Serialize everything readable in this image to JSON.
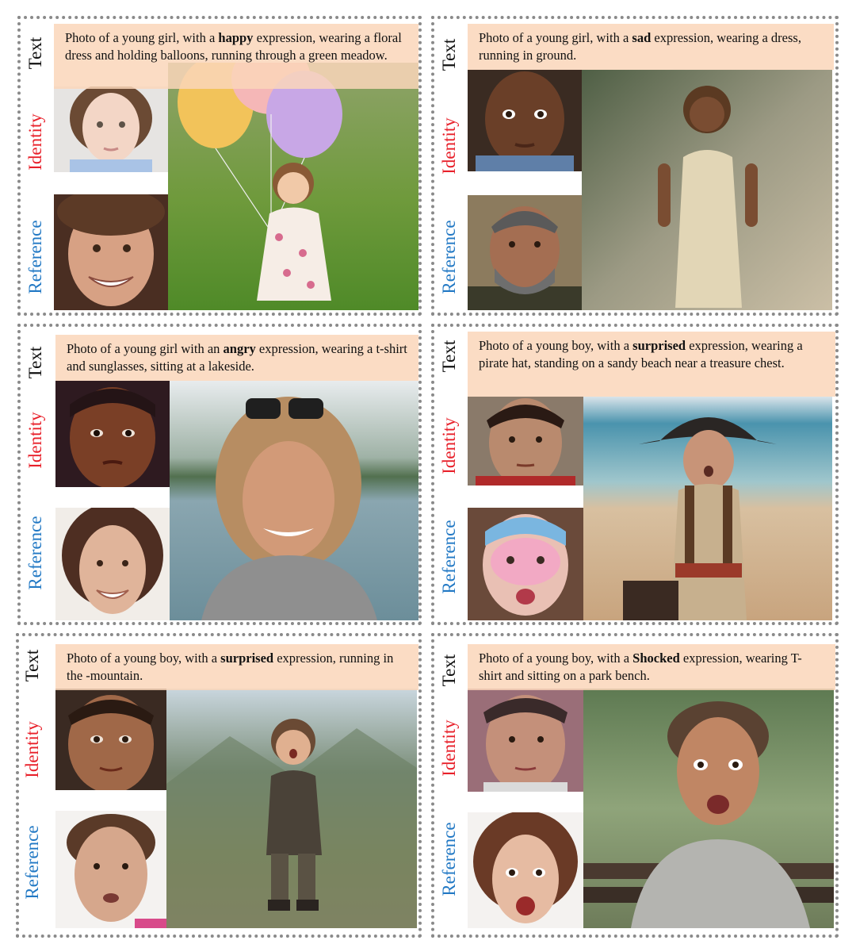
{
  "labels": {
    "text": "Text",
    "identity": "Identity",
    "reference": "Reference"
  },
  "panels": [
    {
      "id": "p1",
      "caption_before": "Photo of a young girl, with a ",
      "expression": "happy",
      "caption_after": " expression, wearing a floral dress and holding balloons, running through a green meadow.",
      "scene": "girl-with-balloons-meadow-photo",
      "identity_face": "young-girl-face-photo",
      "reference_face": "smiling-teen-face-photo"
    },
    {
      "id": "p2",
      "caption_before": "Photo of a young girl, with a ",
      "expression": "sad",
      "caption_after": " expression, wearing a dress, running in ground.",
      "scene": "girl-in-dress-running-photo",
      "identity_face": "young-girl-face-photo",
      "reference_face": "older-man-face-photo"
    },
    {
      "id": "p3",
      "caption_before": "Photo of a young girl with an ",
      "expression": "angry",
      "caption_after": " expression, wearing a t-shirt and sunglasses, sitting at a lakeside.",
      "scene": "girl-with-sunglasses-lakeside-photo",
      "identity_face": "young-girl-face-photo",
      "reference_face": "smiling-woman-face-photo"
    },
    {
      "id": "p4",
      "caption_before": "Photo of a young boy, with a ",
      "expression": "surprised",
      "caption_after": " expression, wearing a pirate hat, standing on a sandy beach near a treasure chest.",
      "scene": "boy-pirate-hat-beach-photo",
      "identity_face": "young-boy-face-photo",
      "reference_face": "face-painted-child-photo"
    },
    {
      "id": "p5",
      "caption_before": "Photo of a young boy, with a ",
      "expression": "surprised",
      "caption_after": " expression, running in the -mountain.",
      "scene": "boy-running-mountain-photo",
      "identity_face": "young-boy-face-photo",
      "reference_face": "woman-surprised-face-photo"
    },
    {
      "id": "p6",
      "caption_before": "Photo of a young boy, with a ",
      "expression": "Shocked",
      "caption_after": " expression, wearing T-shirt and sitting on a park bench.",
      "scene": "boy-shocked-park-bench-photo",
      "identity_face": "young-boy-face-photo",
      "reference_face": "woman-shocked-face-photo"
    }
  ],
  "colors": {
    "caption_bg": "#fad6ba",
    "identity_label": "#e8202a",
    "reference_label": "#2178c4",
    "border": "#8a8a8a"
  }
}
